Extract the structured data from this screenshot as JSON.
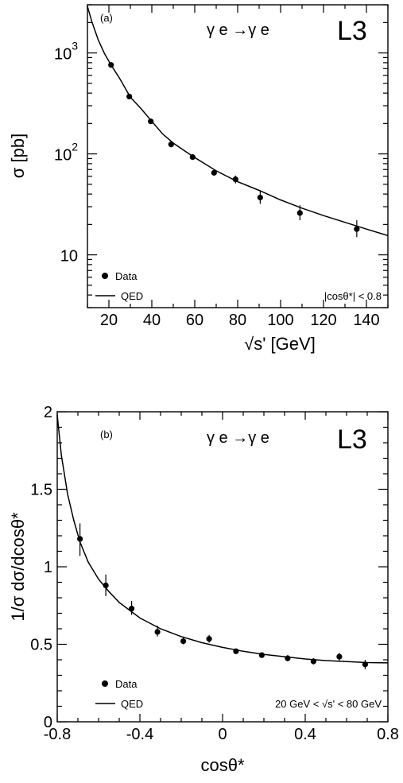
{
  "chart_data": [
    {
      "type": "scatter",
      "panel_label": "(a)",
      "process": "γ e →γ e",
      "experiment": "L3",
      "xlabel": "√s'   [GeV]",
      "ylabel": "σ   [pb]",
      "xlim": [
        10,
        150
      ],
      "ylim": [
        3,
        3000
      ],
      "yscale": "log",
      "xticks": [
        20,
        40,
        60,
        80,
        100,
        120,
        140
      ],
      "xtick_labels": [
        "20",
        "40",
        "60",
        "80",
        "100",
        "120",
        "140"
      ],
      "ytick_labels": [
        {
          "value": 1000,
          "base": "10",
          "exp": "3"
        },
        {
          "value": 100,
          "base": "10",
          "exp": "2"
        },
        {
          "value": 10,
          "base": "10",
          "exp": ""
        }
      ],
      "legend": {
        "data_label": "Data",
        "model_label": "QED",
        "placement": "bottom-left"
      },
      "cut_text": "|cosθ*| < 0.8",
      "data": [
        {
          "x": 21,
          "y": 760,
          "ylo": 735,
          "yhi": 785
        },
        {
          "x": 29.5,
          "y": 370,
          "ylo": 355,
          "yhi": 385
        },
        {
          "x": 39.5,
          "y": 210,
          "ylo": 200,
          "yhi": 220
        },
        {
          "x": 49,
          "y": 124,
          "ylo": 118,
          "yhi": 130
        },
        {
          "x": 59,
          "y": 93,
          "ylo": 88,
          "yhi": 98
        },
        {
          "x": 69,
          "y": 65,
          "ylo": 61,
          "yhi": 69
        },
        {
          "x": 79,
          "y": 56,
          "ylo": 51,
          "yhi": 61
        },
        {
          "x": 90.5,
          "y": 37,
          "ylo": 32,
          "yhi": 43
        },
        {
          "x": 109,
          "y": 26,
          "ylo": 22,
          "yhi": 31
        },
        {
          "x": 135.5,
          "y": 18,
          "ylo": 15,
          "yhi": 22
        }
      ],
      "model": {
        "x": [
          10,
          12,
          15,
          18,
          21,
          25,
          30,
          35,
          40,
          45,
          50,
          55,
          60,
          70,
          80,
          90,
          100,
          110,
          120,
          130,
          140,
          150
        ],
        "y": [
          2900,
          2060,
          1350,
          980,
          760,
          560,
          365,
          280,
          210,
          158,
          128,
          108,
          92,
          68,
          53,
          43.5,
          35,
          29,
          24.5,
          21,
          18,
          15.5
        ]
      }
    },
    {
      "type": "scatter",
      "panel_label": "(b)",
      "process": "γ e →γ e",
      "experiment": "L3",
      "xlabel": "cosθ*",
      "ylabel": "1/σ dσ/dcosθ*",
      "xlim": [
        -0.8,
        0.8
      ],
      "ylim": [
        0,
        2
      ],
      "xticks": [
        -0.8,
        -0.4,
        0,
        0.4,
        0.8
      ],
      "xtick_labels": [
        "-0.8",
        "-0.4",
        "0",
        "0.4",
        "0.8"
      ],
      "yticks": [
        0,
        0.5,
        1,
        1.5,
        2
      ],
      "ytick_labels": [
        "0",
        "0.5",
        "1",
        "1.5",
        "2"
      ],
      "legend": {
        "data_label": "Data",
        "model_label": "QED",
        "placement": "bottom-left"
      },
      "cut_text": "20 GeV < √s' < 80 GeV",
      "data": [
        {
          "x": -0.69,
          "y": 1.18,
          "ylo": 1.07,
          "yhi": 1.28
        },
        {
          "x": -0.565,
          "y": 0.88,
          "ylo": 0.81,
          "yhi": 0.95
        },
        {
          "x": -0.44,
          "y": 0.73,
          "ylo": 0.69,
          "yhi": 0.78
        },
        {
          "x": -0.315,
          "y": 0.58,
          "ylo": 0.55,
          "yhi": 0.62
        },
        {
          "x": -0.19,
          "y": 0.52,
          "ylo": 0.5,
          "yhi": 0.55
        },
        {
          "x": -0.065,
          "y": 0.535,
          "ylo": 0.51,
          "yhi": 0.56
        },
        {
          "x": 0.065,
          "y": 0.455,
          "ylo": 0.44,
          "yhi": 0.47
        },
        {
          "x": 0.19,
          "y": 0.43,
          "ylo": 0.415,
          "yhi": 0.445
        },
        {
          "x": 0.315,
          "y": 0.41,
          "ylo": 0.39,
          "yhi": 0.43
        },
        {
          "x": 0.44,
          "y": 0.39,
          "ylo": 0.37,
          "yhi": 0.41
        },
        {
          "x": 0.565,
          "y": 0.42,
          "ylo": 0.395,
          "yhi": 0.445
        },
        {
          "x": 0.69,
          "y": 0.37,
          "ylo": 0.34,
          "yhi": 0.4
        }
      ],
      "model": {
        "x": [
          -0.8,
          -0.78,
          -0.75,
          -0.72,
          -0.69,
          -0.65,
          -0.6,
          -0.55,
          -0.5,
          -0.45,
          -0.4,
          -0.3,
          -0.2,
          -0.1,
          0,
          0.1,
          0.2,
          0.3,
          0.4,
          0.5,
          0.6,
          0.7,
          0.8
        ],
        "y": [
          1.98,
          1.72,
          1.47,
          1.3,
          1.16,
          1.03,
          0.92,
          0.84,
          0.77,
          0.72,
          0.67,
          0.6,
          0.55,
          0.51,
          0.48,
          0.455,
          0.435,
          0.42,
          0.405,
          0.395,
          0.388,
          0.382,
          0.38
        ]
      }
    }
  ]
}
